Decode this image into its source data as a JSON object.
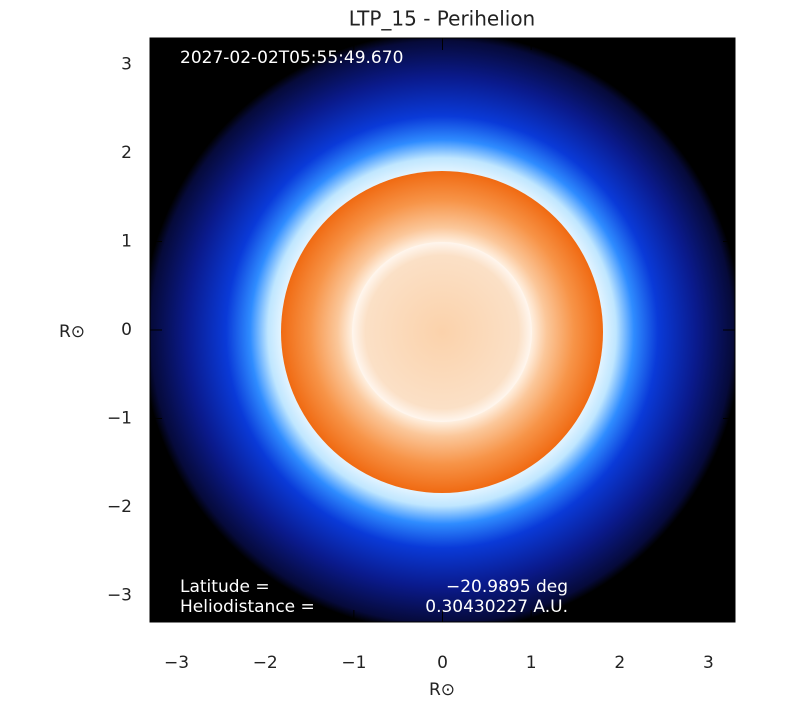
{
  "chart_data": {
    "type": "image",
    "title": "LTP_15 - Perihelion",
    "x_label": "R⊙",
    "y_label": "R⊙",
    "timestamp": "2027-02-02T05:55:49.670",
    "annotations": [
      {
        "label": "Latitude =",
        "value": "−20.9895 deg"
      },
      {
        "label": "Heliodistance =",
        "value": "0.30430227 A.U."
      }
    ],
    "xlim": [
      -3.3,
      3.3
    ],
    "ylim": [
      -3.3,
      3.3
    ],
    "xticks": [
      {
        "value": -3,
        "label": "−3"
      },
      {
        "value": -2,
        "label": "−2"
      },
      {
        "value": -1,
        "label": "−1"
      },
      0,
      1,
      2,
      3
    ],
    "yticks": [
      {
        "value": -3,
        "label": "−3"
      },
      {
        "value": -2,
        "label": "−2"
      },
      {
        "value": -1,
        "label": "−1"
      },
      0,
      1,
      2,
      3
    ]
  }
}
